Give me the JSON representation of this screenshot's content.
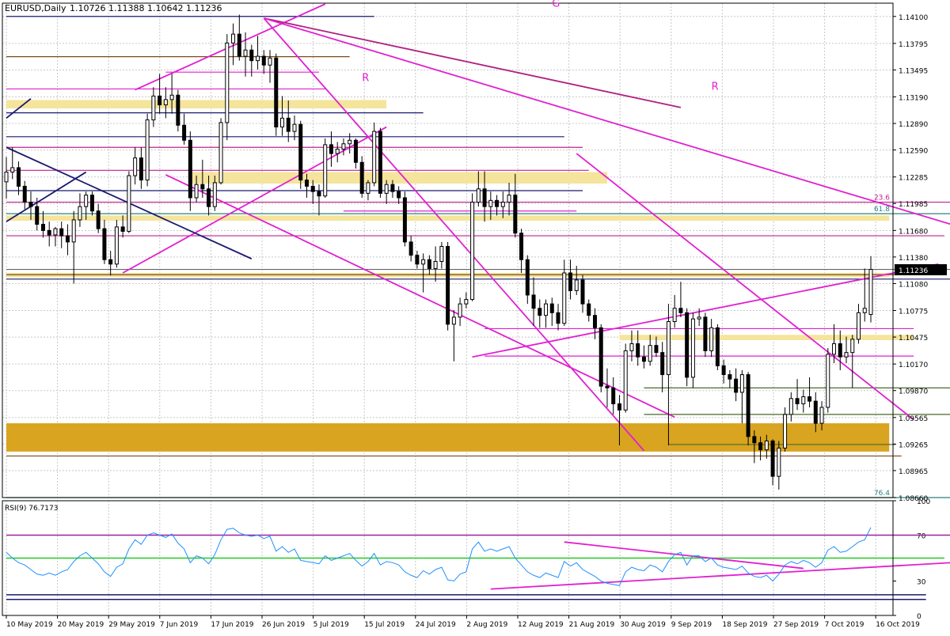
{
  "header": {
    "symbol": "EURUSD,Daily",
    "ohlc": "1.10726 1.11388 1.10642 1.11236"
  },
  "chart_data": {
    "type": "candlestick",
    "title": "EURUSD,Daily",
    "price_scale": {
      "ylim": [
        1.0866,
        1.1425
      ],
      "ticks": [
        "1.14100",
        "1.13795",
        "1.13495",
        "1.13190",
        "1.12890",
        "1.12590",
        "1.12285",
        "1.11985",
        "1.11680",
        "1.11380",
        "1.11080",
        "1.10775",
        "1.10475",
        "1.10170",
        "1.09870",
        "1.09565",
        "1.09265",
        "1.08965",
        "1.08660"
      ],
      "current_price": "1.11236"
    },
    "fib_labels": [
      {
        "text": "23.6",
        "price": 1.12
      },
      {
        "text": "61.8",
        "price": 1.1187
      },
      {
        "text": "76.4",
        "price": 1.0866
      }
    ],
    "wave_labels": [
      {
        "text": "G",
        "date": "2019-09-11",
        "price": 1.1421
      },
      {
        "text": "R",
        "date": "2019-07-30",
        "price": 1.1337
      },
      {
        "text": "R",
        "date": "2019-10-18",
        "price": 1.1327
      }
    ],
    "x_labels": [
      "10 May 2019",
      "20 May 2019",
      "29 May 2019",
      "7 Jun 2019",
      "17 Jun 2019",
      "26 Jun 2019",
      "5 Jul 2019",
      "15 Jul 2019",
      "24 Jul 2019",
      "2 Aug 2019",
      "12 Aug 2019",
      "21 Aug 2019",
      "30 Aug 2019",
      "9 Sep 2019",
      "18 Sep 2019",
      "27 Sep 2019",
      "7 Oct 2019",
      "16 Oct 2019"
    ],
    "candles": [
      {
        "o": 1.1223,
        "h": 1.1251,
        "l": 1.1204,
        "c": 1.1234
      },
      {
        "o": 1.1234,
        "h": 1.1262,
        "l": 1.1226,
        "c": 1.1239
      },
      {
        "o": 1.1239,
        "h": 1.1246,
        "l": 1.1208,
        "c": 1.1218
      },
      {
        "o": 1.1218,
        "h": 1.1224,
        "l": 1.1192,
        "c": 1.12
      },
      {
        "o": 1.12,
        "h": 1.1212,
        "l": 1.118,
        "c": 1.1195
      },
      {
        "o": 1.1195,
        "h": 1.1205,
        "l": 1.1168,
        "c": 1.1175
      },
      {
        "o": 1.1175,
        "h": 1.119,
        "l": 1.116,
        "c": 1.1168
      },
      {
        "o": 1.1168,
        "h": 1.1178,
        "l": 1.115,
        "c": 1.1163
      },
      {
        "o": 1.1163,
        "h": 1.1172,
        "l": 1.115,
        "c": 1.117
      },
      {
        "o": 1.117,
        "h": 1.1178,
        "l": 1.1148,
        "c": 1.1162
      },
      {
        "o": 1.1162,
        "h": 1.1175,
        "l": 1.114,
        "c": 1.1155
      },
      {
        "o": 1.1155,
        "h": 1.119,
        "l": 1.1108,
        "c": 1.118
      },
      {
        "o": 1.118,
        "h": 1.121,
        "l": 1.1172,
        "c": 1.1195
      },
      {
        "o": 1.1195,
        "h": 1.1212,
        "l": 1.118,
        "c": 1.1208
      },
      {
        "o": 1.1208,
        "h": 1.1212,
        "l": 1.1185,
        "c": 1.119
      },
      {
        "o": 1.119,
        "h": 1.1198,
        "l": 1.1165,
        "c": 1.117
      },
      {
        "o": 1.117,
        "h": 1.118,
        "l": 1.113,
        "c": 1.1135
      },
      {
        "o": 1.1135,
        "h": 1.1145,
        "l": 1.1117,
        "c": 1.113
      },
      {
        "o": 1.113,
        "h": 1.118,
        "l": 1.1126,
        "c": 1.1172
      },
      {
        "o": 1.1172,
        "h": 1.1185,
        "l": 1.116,
        "c": 1.1167
      },
      {
        "o": 1.1167,
        "h": 1.1235,
        "l": 1.1165,
        "c": 1.123
      },
      {
        "o": 1.123,
        "h": 1.1262,
        "l": 1.122,
        "c": 1.125
      },
      {
        "o": 1.125,
        "h": 1.1262,
        "l": 1.1215,
        "c": 1.1225
      },
      {
        "o": 1.1225,
        "h": 1.13,
        "l": 1.1218,
        "c": 1.1293
      },
      {
        "o": 1.1293,
        "h": 1.133,
        "l": 1.1285,
        "c": 1.132
      },
      {
        "o": 1.132,
        "h": 1.1345,
        "l": 1.13,
        "c": 1.131
      },
      {
        "o": 1.131,
        "h": 1.133,
        "l": 1.1295,
        "c": 1.1316
      },
      {
        "o": 1.1316,
        "h": 1.1345,
        "l": 1.13,
        "c": 1.1321
      },
      {
        "o": 1.1321,
        "h": 1.1327,
        "l": 1.128,
        "c": 1.1287
      },
      {
        "o": 1.1287,
        "h": 1.13,
        "l": 1.1265,
        "c": 1.127
      },
      {
        "o": 1.127,
        "h": 1.128,
        "l": 1.119,
        "c": 1.1205
      },
      {
        "o": 1.1205,
        "h": 1.123,
        "l": 1.12,
        "c": 1.122
      },
      {
        "o": 1.122,
        "h": 1.1248,
        "l": 1.1205,
        "c": 1.1215
      },
      {
        "o": 1.1215,
        "h": 1.123,
        "l": 1.1185,
        "c": 1.1195
      },
      {
        "o": 1.1195,
        "h": 1.123,
        "l": 1.119,
        "c": 1.1222
      },
      {
        "o": 1.1222,
        "h": 1.1295,
        "l": 1.122,
        "c": 1.129
      },
      {
        "o": 1.129,
        "h": 1.139,
        "l": 1.127,
        "c": 1.138
      },
      {
        "o": 1.138,
        "h": 1.1402,
        "l": 1.1355,
        "c": 1.139
      },
      {
        "o": 1.139,
        "h": 1.1412,
        "l": 1.136,
        "c": 1.1365
      },
      {
        "o": 1.1365,
        "h": 1.1392,
        "l": 1.1342,
        "c": 1.1372
      },
      {
        "o": 1.1372,
        "h": 1.1378,
        "l": 1.1342,
        "c": 1.136
      },
      {
        "o": 1.136,
        "h": 1.1388,
        "l": 1.135,
        "c": 1.1365
      },
      {
        "o": 1.1365,
        "h": 1.1372,
        "l": 1.1345,
        "c": 1.1355
      },
      {
        "o": 1.1355,
        "h": 1.1372,
        "l": 1.1335,
        "c": 1.1363
      },
      {
        "o": 1.1363,
        "h": 1.1368,
        "l": 1.1275,
        "c": 1.1285
      },
      {
        "o": 1.1285,
        "h": 1.132,
        "l": 1.1275,
        "c": 1.1295
      },
      {
        "o": 1.1295,
        "h": 1.1315,
        "l": 1.1268,
        "c": 1.128
      },
      {
        "o": 1.128,
        "h": 1.1298,
        "l": 1.127,
        "c": 1.1288
      },
      {
        "o": 1.1288,
        "h": 1.1292,
        "l": 1.1215,
        "c": 1.1225
      },
      {
        "o": 1.1225,
        "h": 1.1232,
        "l": 1.1205,
        "c": 1.1218
      },
      {
        "o": 1.1218,
        "h": 1.1225,
        "l": 1.1198,
        "c": 1.1212
      },
      {
        "o": 1.1212,
        "h": 1.122,
        "l": 1.1185,
        "c": 1.1207
      },
      {
        "o": 1.1207,
        "h": 1.1272,
        "l": 1.1205,
        "c": 1.1265
      },
      {
        "o": 1.1265,
        "h": 1.128,
        "l": 1.124,
        "c": 1.1255
      },
      {
        "o": 1.1255,
        "h": 1.1268,
        "l": 1.1245,
        "c": 1.126
      },
      {
        "o": 1.126,
        "h": 1.1272,
        "l": 1.1253,
        "c": 1.1266
      },
      {
        "o": 1.1266,
        "h": 1.1278,
        "l": 1.1255,
        "c": 1.127
      },
      {
        "o": 1.127,
        "h": 1.1272,
        "l": 1.1238,
        "c": 1.1245
      },
      {
        "o": 1.1245,
        "h": 1.1252,
        "l": 1.1205,
        "c": 1.121
      },
      {
        "o": 1.121,
        "h": 1.1225,
        "l": 1.1202,
        "c": 1.1222
      },
      {
        "o": 1.1222,
        "h": 1.129,
        "l": 1.1218,
        "c": 1.128
      },
      {
        "o": 1.128,
        "h": 1.1284,
        "l": 1.1205,
        "c": 1.121
      },
      {
        "o": 1.121,
        "h": 1.1225,
        "l": 1.1198,
        "c": 1.122
      },
      {
        "o": 1.122,
        "h": 1.1225,
        "l": 1.1205,
        "c": 1.1212
      },
      {
        "o": 1.1212,
        "h": 1.1218,
        "l": 1.1198,
        "c": 1.1205
      },
      {
        "o": 1.1205,
        "h": 1.1212,
        "l": 1.115,
        "c": 1.1155
      },
      {
        "o": 1.1155,
        "h": 1.1162,
        "l": 1.1133,
        "c": 1.114
      },
      {
        "o": 1.114,
        "h": 1.1145,
        "l": 1.1125,
        "c": 1.113
      },
      {
        "o": 1.113,
        "h": 1.1142,
        "l": 1.1098,
        "c": 1.1135
      },
      {
        "o": 1.1135,
        "h": 1.114,
        "l": 1.1118,
        "c": 1.1125
      },
      {
        "o": 1.1125,
        "h": 1.115,
        "l": 1.111,
        "c": 1.1133
      },
      {
        "o": 1.1133,
        "h": 1.1155,
        "l": 1.1125,
        "c": 1.115
      },
      {
        "o": 1.115,
        "h": 1.1155,
        "l": 1.1055,
        "c": 1.1062
      },
      {
        "o": 1.1062,
        "h": 1.1078,
        "l": 1.102,
        "c": 1.107
      },
      {
        "o": 1.107,
        "h": 1.1092,
        "l": 1.106,
        "c": 1.1085
      },
      {
        "o": 1.1085,
        "h": 1.1098,
        "l": 1.108,
        "c": 1.109
      },
      {
        "o": 1.109,
        "h": 1.121,
        "l": 1.1088,
        "c": 1.12
      },
      {
        "o": 1.12,
        "h": 1.1235,
        "l": 1.1195,
        "c": 1.1215
      },
      {
        "o": 1.1215,
        "h": 1.1235,
        "l": 1.1178,
        "c": 1.1195
      },
      {
        "o": 1.1195,
        "h": 1.1212,
        "l": 1.118,
        "c": 1.1202
      },
      {
        "o": 1.1202,
        "h": 1.1208,
        "l": 1.1185,
        "c": 1.1195
      },
      {
        "o": 1.1195,
        "h": 1.1212,
        "l": 1.1182,
        "c": 1.12
      },
      {
        "o": 1.12,
        "h": 1.1222,
        "l": 1.1185,
        "c": 1.1208
      },
      {
        "o": 1.1208,
        "h": 1.1232,
        "l": 1.116,
        "c": 1.1165
      },
      {
        "o": 1.1165,
        "h": 1.117,
        "l": 1.112,
        "c": 1.1135
      },
      {
        "o": 1.1135,
        "h": 1.114,
        "l": 1.1085,
        "c": 1.1095
      },
      {
        "o": 1.1095,
        "h": 1.1115,
        "l": 1.106,
        "c": 1.108
      },
      {
        "o": 1.108,
        "h": 1.109,
        "l": 1.1058,
        "c": 1.1072
      },
      {
        "o": 1.1072,
        "h": 1.109,
        "l": 1.1058,
        "c": 1.1085
      },
      {
        "o": 1.1085,
        "h": 1.1092,
        "l": 1.106,
        "c": 1.1075
      },
      {
        "o": 1.1075,
        "h": 1.1085,
        "l": 1.1055,
        "c": 1.1063
      },
      {
        "o": 1.1063,
        "h": 1.1135,
        "l": 1.106,
        "c": 1.112
      },
      {
        "o": 1.112,
        "h": 1.1135,
        "l": 1.109,
        "c": 1.11
      },
      {
        "o": 1.11,
        "h": 1.1128,
        "l": 1.1095,
        "c": 1.1112
      },
      {
        "o": 1.1112,
        "h": 1.1118,
        "l": 1.1075,
        "c": 1.1085
      },
      {
        "o": 1.1085,
        "h": 1.109,
        "l": 1.1065,
        "c": 1.1072
      },
      {
        "o": 1.1072,
        "h": 1.108,
        "l": 1.1045,
        "c": 1.1058
      },
      {
        "o": 1.1058,
        "h": 1.1062,
        "l": 1.0985,
        "c": 1.0992
      },
      {
        "o": 1.0992,
        "h": 1.1012,
        "l": 1.0968,
        "c": 1.099
      },
      {
        "o": 1.099,
        "h": 1.1002,
        "l": 1.096,
        "c": 1.0972
      },
      {
        "o": 1.0972,
        "h": 1.0982,
        "l": 1.0925,
        "c": 1.0965
      },
      {
        "o": 1.0965,
        "h": 1.104,
        "l": 1.0962,
        "c": 1.1032
      },
      {
        "o": 1.1032,
        "h": 1.1055,
        "l": 1.102,
        "c": 1.104
      },
      {
        "o": 1.104,
        "h": 1.1055,
        "l": 1.1015,
        "c": 1.1025
      },
      {
        "o": 1.1025,
        "h": 1.1038,
        "l": 1.1012,
        "c": 1.102
      },
      {
        "o": 1.102,
        "h": 1.105,
        "l": 1.1015,
        "c": 1.1038
      },
      {
        "o": 1.1038,
        "h": 1.1048,
        "l": 1.1025,
        "c": 1.103
      },
      {
        "o": 1.103,
        "h": 1.1042,
        "l": 1.0985,
        "c": 1.1005
      },
      {
        "o": 1.1005,
        "h": 1.1085,
        "l": 1.0925,
        "c": 1.1065
      },
      {
        "o": 1.1065,
        "h": 1.1095,
        "l": 1.1058,
        "c": 1.108
      },
      {
        "o": 1.108,
        "h": 1.111,
        "l": 1.107,
        "c": 1.1075
      },
      {
        "o": 1.1075,
        "h": 1.108,
        "l": 1.0992,
        "c": 1.1002
      },
      {
        "o": 1.1002,
        "h": 1.1075,
        "l": 1.099,
        "c": 1.1068
      },
      {
        "o": 1.1068,
        "h": 1.108,
        "l": 1.106,
        "c": 1.107
      },
      {
        "o": 1.107,
        "h": 1.1075,
        "l": 1.1025,
        "c": 1.1032
      },
      {
        "o": 1.1032,
        "h": 1.1068,
        "l": 1.1025,
        "c": 1.1058
      },
      {
        "o": 1.1058,
        "h": 1.1062,
        "l": 1.101,
        "c": 1.1015
      },
      {
        "o": 1.1015,
        "h": 1.1022,
        "l": 1.0995,
        "c": 1.1005
      },
      {
        "o": 1.1005,
        "h": 1.101,
        "l": 1.099,
        "c": 1.1
      },
      {
        "o": 1.1,
        "h": 1.1012,
        "l": 1.0975,
        "c": 1.0985
      },
      {
        "o": 1.0985,
        "h": 1.101,
        "l": 1.095,
        "c": 1.1005
      },
      {
        "o": 1.1005,
        "h": 1.1008,
        "l": 1.0925,
        "c": 1.0935
      },
      {
        "o": 1.0935,
        "h": 1.0942,
        "l": 1.0905,
        "c": 1.0928
      },
      {
        "o": 1.0928,
        "h": 1.0935,
        "l": 1.0908,
        "c": 1.092
      },
      {
        "o": 1.092,
        "h": 1.0937,
        "l": 1.091,
        "c": 1.093
      },
      {
        "o": 1.093,
        "h": 1.0932,
        "l": 1.088,
        "c": 1.089
      },
      {
        "o": 1.089,
        "h": 1.093,
        "l": 1.0875,
        "c": 1.0922
      },
      {
        "o": 1.0922,
        "h": 1.0968,
        "l": 1.0918,
        "c": 1.096
      },
      {
        "o": 1.096,
        "h": 1.0985,
        "l": 1.0952,
        "c": 1.0978
      },
      {
        "o": 1.0978,
        "h": 1.1,
        "l": 1.0965,
        "c": 1.0972
      },
      {
        "o": 1.0972,
        "h": 1.0988,
        "l": 1.0962,
        "c": 1.098
      },
      {
        "o": 1.098,
        "h": 1.1002,
        "l": 1.0968,
        "c": 1.0975
      },
      {
        "o": 1.0975,
        "h": 1.0985,
        "l": 1.094,
        "c": 1.095
      },
      {
        "o": 1.095,
        "h": 1.0975,
        "l": 1.0942,
        "c": 1.0968
      },
      {
        "o": 1.0968,
        "h": 1.1035,
        "l": 1.0962,
        "c": 1.1028
      },
      {
        "o": 1.1028,
        "h": 1.1062,
        "l": 1.1018,
        "c": 1.104
      },
      {
        "o": 1.104,
        "h": 1.1055,
        "l": 1.101,
        "c": 1.1025
      },
      {
        "o": 1.1025,
        "h": 1.1048,
        "l": 1.1018,
        "c": 1.103
      },
      {
        "o": 1.103,
        "h": 1.105,
        "l": 1.099,
        "c": 1.1045
      },
      {
        "o": 1.1045,
        "h": 1.1085,
        "l": 1.104,
        "c": 1.1075
      },
      {
        "o": 1.1075,
        "h": 1.1125,
        "l": 1.1065,
        "c": 1.108
      },
      {
        "o": 1.1073,
        "h": 1.1139,
        "l": 1.1064,
        "c": 1.1124
      }
    ],
    "rsi": {
      "label": "RSI(9) 76.7173",
      "ylim": [
        0,
        100
      ],
      "ticks": [
        "100",
        "70",
        "30",
        "0"
      ],
      "values": [
        55,
        50,
        46,
        44,
        40,
        36,
        35,
        37,
        35,
        38,
        40,
        47,
        52,
        55,
        50,
        45,
        38,
        34,
        42,
        45,
        58,
        66,
        62,
        70,
        72,
        70,
        68,
        71,
        63,
        58,
        46,
        52,
        50,
        45,
        53,
        66,
        75,
        76,
        72,
        70,
        69,
        70,
        67,
        69,
        56,
        60,
        55,
        58,
        48,
        47,
        46,
        45,
        52,
        48,
        50,
        52,
        54,
        48,
        43,
        47,
        54,
        44,
        47,
        46,
        44,
        38,
        35,
        33,
        39,
        36,
        40,
        42,
        31,
        30,
        36,
        38,
        58,
        64,
        56,
        58,
        56,
        58,
        60,
        50,
        44,
        38,
        35,
        33,
        37,
        35,
        33,
        47,
        43,
        46,
        40,
        37,
        34,
        30,
        28,
        27,
        26,
        38,
        42,
        40,
        39,
        44,
        42,
        38,
        47,
        53,
        55,
        44,
        52,
        52,
        47,
        50,
        44,
        42,
        41,
        40,
        43,
        37,
        34,
        33,
        35,
        30,
        36,
        44,
        47,
        45,
        48,
        46,
        42,
        46,
        57,
        60,
        55,
        56,
        60,
        64,
        66,
        76.7
      ]
    }
  }
}
